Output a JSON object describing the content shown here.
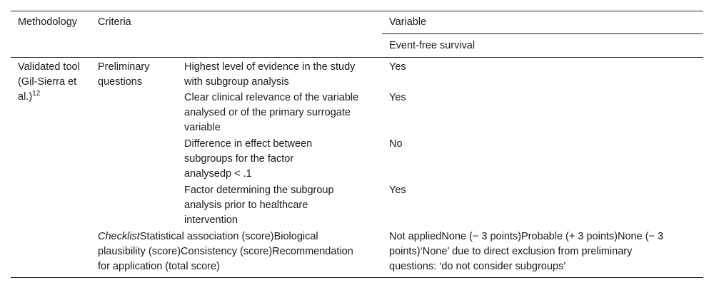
{
  "header": {
    "methodology": "Methodology",
    "criteria": "Criteria",
    "variable": "Variable",
    "subheader": "Event-free survival"
  },
  "method": {
    "label": "Validated tool (Gil-Sierra et al.)",
    "ref": "12"
  },
  "preliminary": {
    "label": "Preliminary questions",
    "rows": [
      {
        "criterion": "Highest level of evidence in the study with subgroup analysis",
        "value": "Yes"
      },
      {
        "criterion": "Clear clinical relevance of the variable analysed or of the primary surrogate variable",
        "value": "Yes"
      },
      {
        "criterion": "Difference in effect between subgroups for the factor analysedp < .1",
        "value": "No"
      },
      {
        "criterion": "Factor determining the subgroup analysis prior to healthcare intervention",
        "value": "Yes"
      }
    ]
  },
  "checklist": {
    "label": "Checklist",
    "text": "Statistical association (score)Biological plausibility (score)Consistency (score)Recommendation for application (total score)",
    "value": "Not appliedNone (− 3 points)Probable (+ 3 points)None (− 3 points)‘None’ due to direct exclusion from preliminary questions: ‘do not consider subgroups’"
  }
}
